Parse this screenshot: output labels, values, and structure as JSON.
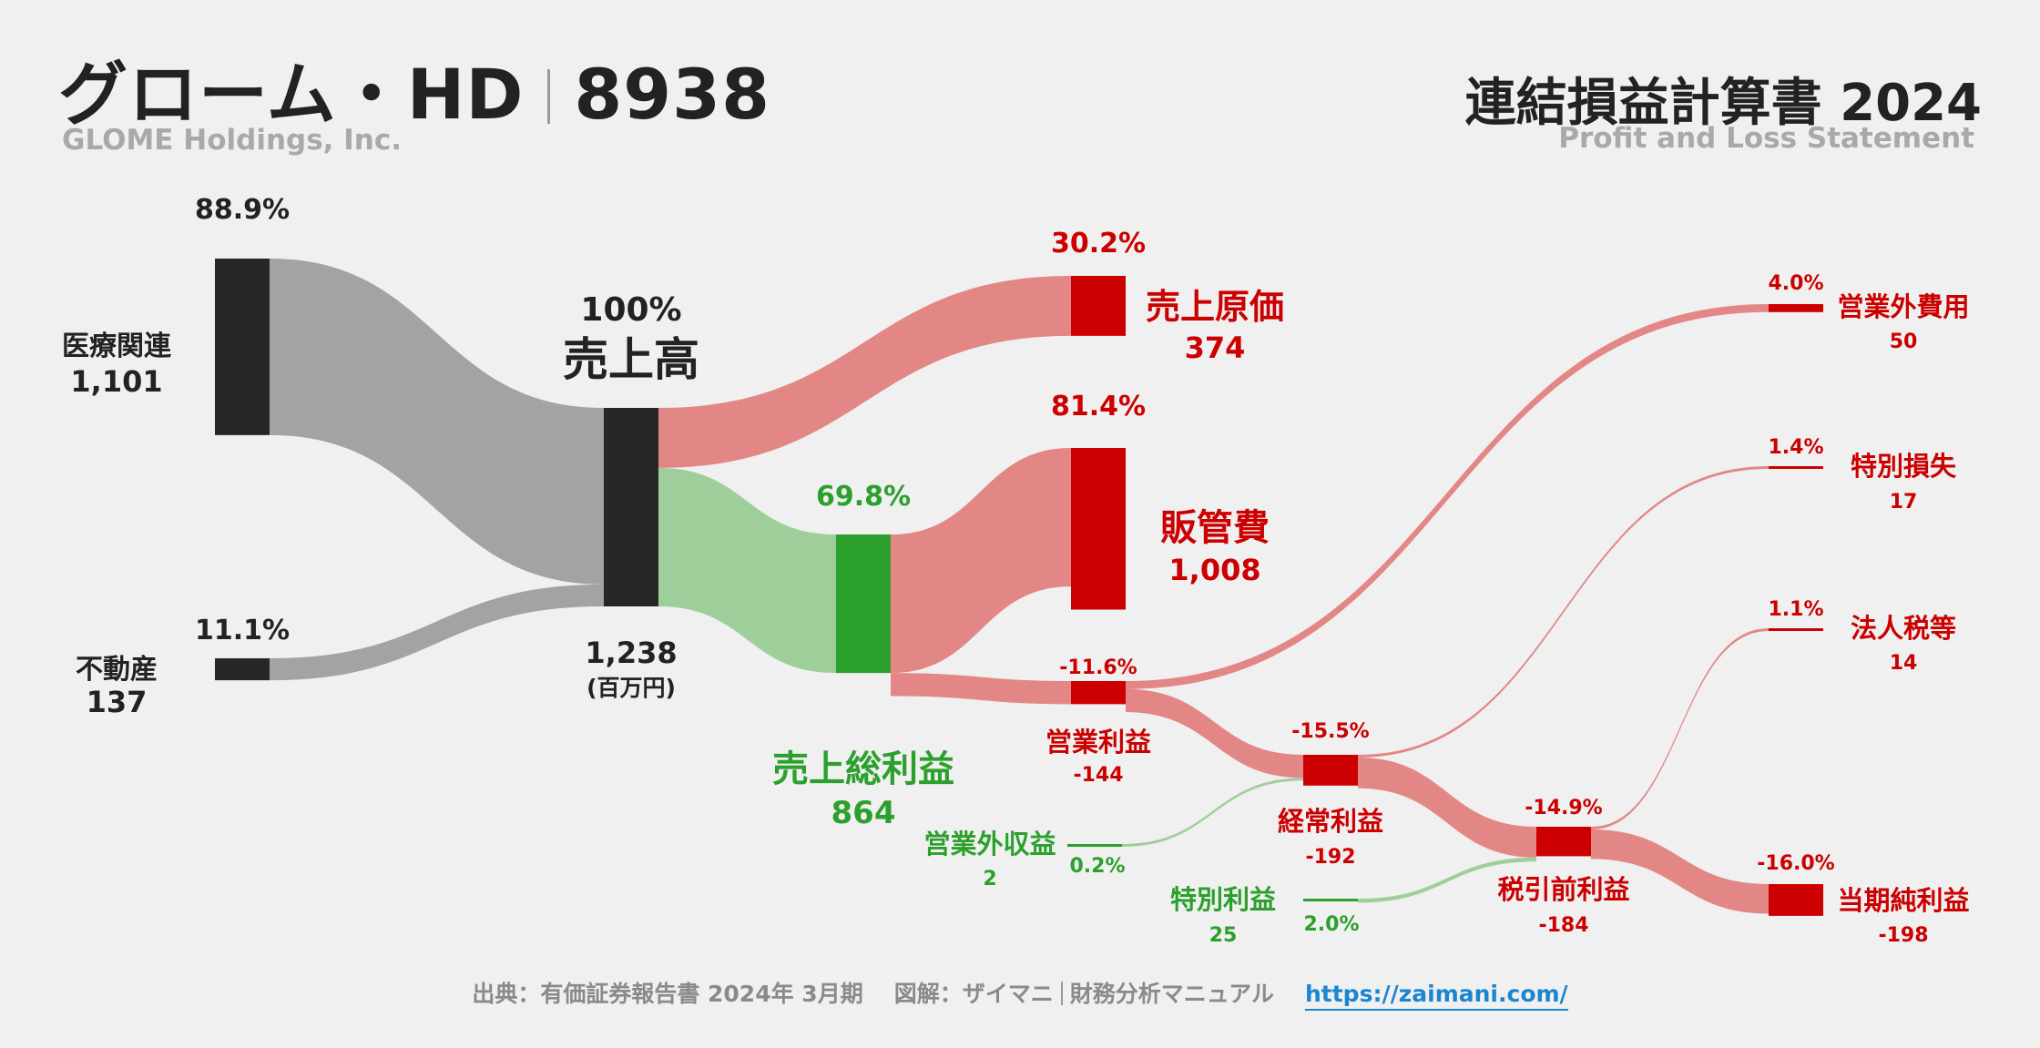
{
  "header": {
    "company": "グローム・HD",
    "ticker": "8938",
    "company_en": "GLOME Holdings, Inc.",
    "statement_title": "連結損益計算書 2024",
    "statement_subtitle": "Profit and Loss Statement"
  },
  "footer": {
    "source": "出典：有価証券報告書 2024年 3月期",
    "diagram_by": "図解：ザイマニ",
    "site_name": "財務分析マニュアル",
    "url": "https://zaimani.com/"
  },
  "colors": {
    "neutral_node": "#262626",
    "neutral_flow": "#a3a3a3",
    "red_node": "#cc0000",
    "red_flow": "#e28785",
    "red_text": "#cc0000",
    "green_node": "#2ca02c",
    "green_flow": "#9ecf9b",
    "green_text": "#2ca02c"
  },
  "chart_data": {
    "type": "sankey",
    "unit": "(百万円)",
    "nodes": [
      {
        "id": "medical",
        "label": "医療関連",
        "value": 1101,
        "value_label": "1,101",
        "pct": "88.9%",
        "kind": "neutral"
      },
      {
        "id": "realestate",
        "label": "不動産",
        "value": 137,
        "value_label": "137",
        "pct": "11.1%",
        "kind": "neutral"
      },
      {
        "id": "revenue",
        "label": "売上高",
        "value": 1238,
        "value_label": "1,238",
        "pct": "100%",
        "kind": "neutral"
      },
      {
        "id": "cogs",
        "label": "売上原価",
        "value": 374,
        "value_label": "374",
        "pct": "30.2%",
        "kind": "red"
      },
      {
        "id": "gross",
        "label": "売上総利益",
        "value": 864,
        "value_label": "864",
        "pct": "69.8%",
        "kind": "green"
      },
      {
        "id": "sga",
        "label": "販管費",
        "value": 1008,
        "value_label": "1,008",
        "pct": "81.4%",
        "kind": "red"
      },
      {
        "id": "op",
        "label": "営業利益",
        "value": -144,
        "value_label": "-144",
        "pct": "-11.6%",
        "kind": "red"
      },
      {
        "id": "nonop_inc",
        "label": "営業外収益",
        "value": 2,
        "value_label": "2",
        "pct": "0.2%",
        "kind": "green"
      },
      {
        "id": "nonop_exp",
        "label": "営業外費用",
        "value": 50,
        "value_label": "50",
        "pct": "4.0%",
        "kind": "red"
      },
      {
        "id": "ordinary",
        "label": "経常利益",
        "value": -192,
        "value_label": "-192",
        "pct": "-15.5%",
        "kind": "red"
      },
      {
        "id": "extra_gain",
        "label": "特別利益",
        "value": 25,
        "value_label": "25",
        "pct": "2.0%",
        "kind": "green"
      },
      {
        "id": "extra_loss",
        "label": "特別損失",
        "value": 17,
        "value_label": "17",
        "pct": "1.4%",
        "kind": "red"
      },
      {
        "id": "pretax",
        "label": "税引前利益",
        "value": -184,
        "value_label": "-184",
        "pct": "-14.9%",
        "kind": "red"
      },
      {
        "id": "tax",
        "label": "法人税等",
        "value": 14,
        "value_label": "14",
        "pct": "1.1%",
        "kind": "red"
      },
      {
        "id": "net",
        "label": "当期純利益",
        "value": -198,
        "value_label": "-198",
        "pct": "-16.0%",
        "kind": "red"
      }
    ],
    "links": [
      {
        "source": "medical",
        "target": "revenue",
        "value": 1101
      },
      {
        "source": "realestate",
        "target": "revenue",
        "value": 137
      },
      {
        "source": "revenue",
        "target": "cogs",
        "value": 374
      },
      {
        "source": "revenue",
        "target": "gross",
        "value": 864
      },
      {
        "source": "gross",
        "target": "sga",
        "value": 864
      },
      {
        "source": "gross",
        "target": "op",
        "value": 144
      },
      {
        "source": "op",
        "target": "nonop_exp",
        "value": 50
      },
      {
        "source": "op",
        "target": "ordinary",
        "value": 144
      },
      {
        "source": "nonop_inc",
        "target": "ordinary",
        "value": 2
      },
      {
        "source": "ordinary",
        "target": "extra_loss",
        "value": 17
      },
      {
        "source": "ordinary",
        "target": "pretax",
        "value": 192
      },
      {
        "source": "extra_gain",
        "target": "pretax",
        "value": 25
      },
      {
        "source": "pretax",
        "target": "tax",
        "value": 14
      },
      {
        "source": "pretax",
        "target": "net",
        "value": 184
      }
    ]
  }
}
